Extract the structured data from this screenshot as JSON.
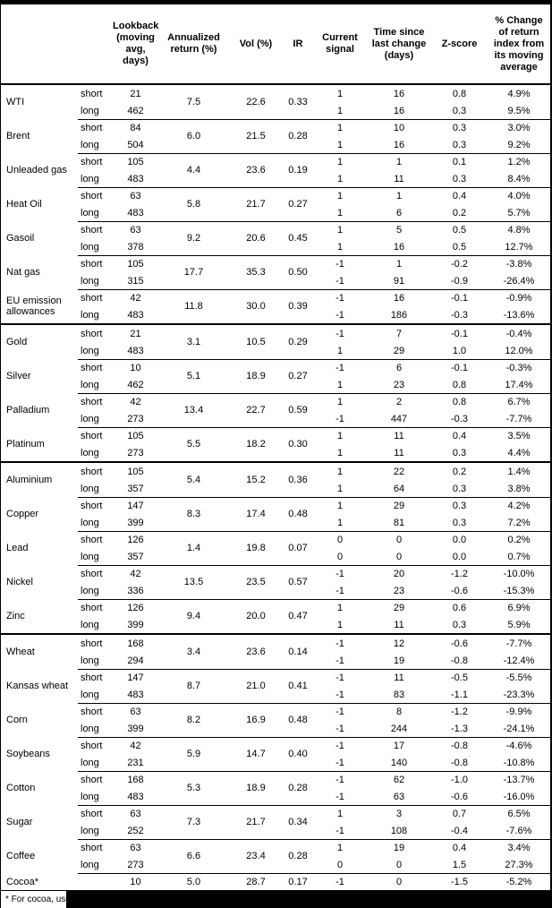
{
  "table": {
    "columns": [
      "Lookback (moving avg, days)",
      "Annualized return (%)",
      "Vol (%)",
      "IR",
      "Current signal",
      "Time since last change (days)",
      "Z-score",
      "% Change of return index from its moving average"
    ],
    "sections": [
      {
        "commodities": [
          {
            "name": "WTI",
            "annualized_return": "7.5",
            "vol": "22.6",
            "ir": "0.33",
            "rows": [
              {
                "horizon": "short",
                "lookback": "21",
                "signal": "1",
                "time_since": "16",
                "z_score": "0.8",
                "pct_change": "4.9%"
              },
              {
                "horizon": "long",
                "lookback": "462",
                "signal": "1",
                "time_since": "16",
                "z_score": "0.3",
                "pct_change": "9.5%"
              }
            ]
          },
          {
            "name": "Brent",
            "annualized_return": "6.0",
            "vol": "21.5",
            "ir": "0.28",
            "rows": [
              {
                "horizon": "short",
                "lookback": "84",
                "signal": "1",
                "time_since": "10",
                "z_score": "0.3",
                "pct_change": "3.0%"
              },
              {
                "horizon": "long",
                "lookback": "504",
                "signal": "1",
                "time_since": "16",
                "z_score": "0.3",
                "pct_change": "9.2%"
              }
            ]
          },
          {
            "name": "Unleaded gas",
            "annualized_return": "4.4",
            "vol": "23.6",
            "ir": "0.19",
            "rows": [
              {
                "horizon": "short",
                "lookback": "105",
                "signal": "1",
                "time_since": "1",
                "z_score": "0.1",
                "pct_change": "1.2%"
              },
              {
                "horizon": "long",
                "lookback": "483",
                "signal": "1",
                "time_since": "11",
                "z_score": "0.3",
                "pct_change": "8.4%"
              }
            ]
          },
          {
            "name": "Heat Oil",
            "annualized_return": "5.8",
            "vol": "21.7",
            "ir": "0.27",
            "rows": [
              {
                "horizon": "short",
                "lookback": "63",
                "signal": "1",
                "time_since": "1",
                "z_score": "0.4",
                "pct_change": "4.0%"
              },
              {
                "horizon": "long",
                "lookback": "483",
                "signal": "1",
                "time_since": "6",
                "z_score": "0.2",
                "pct_change": "5.7%"
              }
            ]
          },
          {
            "name": "Gasoil",
            "annualized_return": "9.2",
            "vol": "20.6",
            "ir": "0.45",
            "rows": [
              {
                "horizon": "short",
                "lookback": "63",
                "signal": "1",
                "time_since": "5",
                "z_score": "0.5",
                "pct_change": "4.8%"
              },
              {
                "horizon": "long",
                "lookback": "378",
                "signal": "1",
                "time_since": "16",
                "z_score": "0.5",
                "pct_change": "12.7%"
              }
            ]
          },
          {
            "name": "Nat gas",
            "annualized_return": "17.7",
            "vol": "35.3",
            "ir": "0.50",
            "rows": [
              {
                "horizon": "short",
                "lookback": "105",
                "signal": "-1",
                "time_since": "1",
                "z_score": "-0.2",
                "pct_change": "-3.8%"
              },
              {
                "horizon": "long",
                "lookback": "315",
                "signal": "-1",
                "time_since": "91",
                "z_score": "-0.9",
                "pct_change": "-26.4%"
              }
            ]
          },
          {
            "name": "EU emission allowances",
            "annualized_return": "11.8",
            "vol": "30.0",
            "ir": "0.39",
            "rows": [
              {
                "horizon": "short",
                "lookback": "42",
                "signal": "-1",
                "time_since": "16",
                "z_score": "-0.1",
                "pct_change": "-0.9%"
              },
              {
                "horizon": "long",
                "lookback": "483",
                "signal": "-1",
                "time_since": "186",
                "z_score": "-0.3",
                "pct_change": "-13.6%"
              }
            ]
          }
        ]
      },
      {
        "commodities": [
          {
            "name": "Gold",
            "annualized_return": "3.1",
            "vol": "10.5",
            "ir": "0.29",
            "rows": [
              {
                "horizon": "short",
                "lookback": "21",
                "signal": "-1",
                "time_since": "7",
                "z_score": "-0.1",
                "pct_change": "-0.4%"
              },
              {
                "horizon": "long",
                "lookback": "483",
                "signal": "1",
                "time_since": "29",
                "z_score": "1.0",
                "pct_change": "12.0%"
              }
            ]
          },
          {
            "name": "Silver",
            "annualized_return": "5.1",
            "vol": "18.9",
            "ir": "0.27",
            "rows": [
              {
                "horizon": "short",
                "lookback": "10",
                "signal": "-1",
                "time_since": "6",
                "z_score": "-0.1",
                "pct_change": "-0.3%"
              },
              {
                "horizon": "long",
                "lookback": "462",
                "signal": "1",
                "time_since": "23",
                "z_score": "0.8",
                "pct_change": "17.4%"
              }
            ]
          },
          {
            "name": "Palladium",
            "annualized_return": "13.4",
            "vol": "22.7",
            "ir": "0.59",
            "rows": [
              {
                "horizon": "short",
                "lookback": "42",
                "signal": "1",
                "time_since": "2",
                "z_score": "0.8",
                "pct_change": "6.7%"
              },
              {
                "horizon": "long",
                "lookback": "273",
                "signal": "-1",
                "time_since": "447",
                "z_score": "-0.3",
                "pct_change": "-7.7%"
              }
            ]
          },
          {
            "name": "Platinum",
            "annualized_return": "5.5",
            "vol": "18.2",
            "ir": "0.30",
            "rows": [
              {
                "horizon": "short",
                "lookback": "105",
                "signal": "1",
                "time_since": "11",
                "z_score": "0.4",
                "pct_change": "3.5%"
              },
              {
                "horizon": "long",
                "lookback": "273",
                "signal": "1",
                "time_since": "11",
                "z_score": "0.3",
                "pct_change": "4.4%"
              }
            ]
          }
        ]
      },
      {
        "commodities": [
          {
            "name": "Aluminium",
            "annualized_return": "5.4",
            "vol": "15.2",
            "ir": "0.36",
            "rows": [
              {
                "horizon": "short",
                "lookback": "105",
                "signal": "1",
                "time_since": "22",
                "z_score": "0.2",
                "pct_change": "1.4%"
              },
              {
                "horizon": "long",
                "lookback": "357",
                "signal": "1",
                "time_since": "64",
                "z_score": "0.3",
                "pct_change": "3.8%"
              }
            ]
          },
          {
            "name": "Copper",
            "annualized_return": "8.3",
            "vol": "17.4",
            "ir": "0.48",
            "rows": [
              {
                "horizon": "short",
                "lookback": "147",
                "signal": "1",
                "time_since": "29",
                "z_score": "0.3",
                "pct_change": "4.2%"
              },
              {
                "horizon": "long",
                "lookback": "399",
                "signal": "1",
                "time_since": "81",
                "z_score": "0.3",
                "pct_change": "7.2%"
              }
            ]
          },
          {
            "name": "Lead",
            "annualized_return": "1.4",
            "vol": "19.8",
            "ir": "0.07",
            "rows": [
              {
                "horizon": "short",
                "lookback": "126",
                "signal": "0",
                "time_since": "0",
                "z_score": "0.0",
                "pct_change": "0.2%"
              },
              {
                "horizon": "long",
                "lookback": "357",
                "signal": "0",
                "time_since": "0",
                "z_score": "0.0",
                "pct_change": "0.7%"
              }
            ]
          },
          {
            "name": "Nickel",
            "annualized_return": "13.5",
            "vol": "23.5",
            "ir": "0.57",
            "rows": [
              {
                "horizon": "short",
                "lookback": "42",
                "signal": "-1",
                "time_since": "20",
                "z_score": "-1.2",
                "pct_change": "-10.0%"
              },
              {
                "horizon": "long",
                "lookback": "336",
                "signal": "-1",
                "time_since": "23",
                "z_score": "-0.6",
                "pct_change": "-15.3%"
              }
            ]
          },
          {
            "name": "Zinc",
            "annualized_return": "9.4",
            "vol": "20.0",
            "ir": "0.47",
            "rows": [
              {
                "horizon": "short",
                "lookback": "126",
                "signal": "1",
                "time_since": "29",
                "z_score": "0.6",
                "pct_change": "6.9%"
              },
              {
                "horizon": "long",
                "lookback": "399",
                "signal": "1",
                "time_since": "11",
                "z_score": "0.3",
                "pct_change": "5.9%"
              }
            ]
          }
        ]
      },
      {
        "commodities": [
          {
            "name": "Wheat",
            "annualized_return": "3.4",
            "vol": "23.6",
            "ir": "0.14",
            "rows": [
              {
                "horizon": "short",
                "lookback": "168",
                "signal": "-1",
                "time_since": "12",
                "z_score": "-0.6",
                "pct_change": "-7.7%"
              },
              {
                "horizon": "long",
                "lookback": "294",
                "signal": "-1",
                "time_since": "19",
                "z_score": "-0.8",
                "pct_change": "-12.4%"
              }
            ]
          },
          {
            "name": "Kansas wheat",
            "annualized_return": "8.7",
            "vol": "21.0",
            "ir": "0.41",
            "rows": [
              {
                "horizon": "short",
                "lookback": "147",
                "signal": "-1",
                "time_since": "11",
                "z_score": "-0.5",
                "pct_change": "-5.5%"
              },
              {
                "horizon": "long",
                "lookback": "483",
                "signal": "-1",
                "time_since": "83",
                "z_score": "-1.1",
                "pct_change": "-23.3%"
              }
            ]
          },
          {
            "name": "Corn",
            "annualized_return": "8.2",
            "vol": "16.9",
            "ir": "0.48",
            "rows": [
              {
                "horizon": "short",
                "lookback": "63",
                "signal": "-1",
                "time_since": "8",
                "z_score": "-1.2",
                "pct_change": "-9.9%"
              },
              {
                "horizon": "long",
                "lookback": "399",
                "signal": "-1",
                "time_since": "244",
                "z_score": "-1.3",
                "pct_change": "-24.1%"
              }
            ]
          },
          {
            "name": "Soybeans",
            "annualized_return": "5.9",
            "vol": "14.7",
            "ir": "0.40",
            "rows": [
              {
                "horizon": "short",
                "lookback": "42",
                "signal": "-1",
                "time_since": "17",
                "z_score": "-0.8",
                "pct_change": "-4.6%"
              },
              {
                "horizon": "long",
                "lookback": "231",
                "signal": "-1",
                "time_since": "140",
                "z_score": "-0.8",
                "pct_change": "-10.8%"
              }
            ]
          },
          {
            "name": "Cotton",
            "annualized_return": "5.3",
            "vol": "18.9",
            "ir": "0.28",
            "rows": [
              {
                "horizon": "short",
                "lookback": "168",
                "signal": "-1",
                "time_since": "62",
                "z_score": "-1.0",
                "pct_change": "-13.7%"
              },
              {
                "horizon": "long",
                "lookback": "483",
                "signal": "-1",
                "time_since": "63",
                "z_score": "-0.6",
                "pct_change": "-16.0%"
              }
            ]
          },
          {
            "name": "Sugar",
            "annualized_return": "7.3",
            "vol": "21.7",
            "ir": "0.34",
            "rows": [
              {
                "horizon": "short",
                "lookback": "63",
                "signal": "1",
                "time_since": "3",
                "z_score": "0.7",
                "pct_change": "6.5%"
              },
              {
                "horizon": "long",
                "lookback": "252",
                "signal": "-1",
                "time_since": "108",
                "z_score": "-0.4",
                "pct_change": "-7.6%"
              }
            ]
          },
          {
            "name": "Coffee",
            "annualized_return": "6.6",
            "vol": "23.4",
            "ir": "0.28",
            "rows": [
              {
                "horizon": "short",
                "lookback": "63",
                "signal": "1",
                "time_since": "19",
                "z_score": "0.4",
                "pct_change": "3.4%"
              },
              {
                "horizon": "long",
                "lookback": "273",
                "signal": "0",
                "time_since": "0",
                "z_score": "1.5",
                "pct_change": "27.3%"
              }
            ]
          },
          {
            "name": "Cocoa*",
            "annualized_return": "5.0",
            "vol": "28.7",
            "ir": "0.17",
            "rows": [
              {
                "horizon": "",
                "lookback": "10",
                "signal": "-1",
                "time_since": "0",
                "z_score": "-1.5",
                "pct_change": "-5.2%"
              }
            ]
          }
        ]
      }
    ],
    "footnote": "* For cocoa, uses c"
  }
}
